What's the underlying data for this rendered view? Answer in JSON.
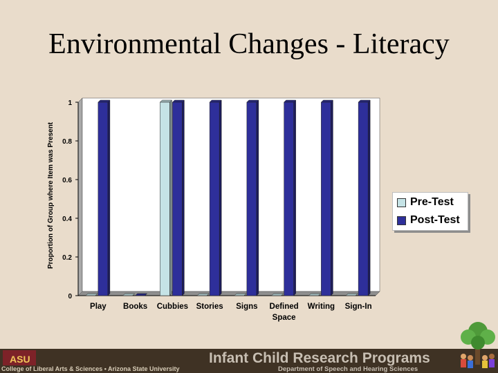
{
  "slide": {
    "title": "Environmental Changes - Literacy"
  },
  "chart_data": {
    "type": "bar",
    "title": "",
    "xlabel": "",
    "ylabel": "Proportion of Group where Item was Present",
    "ylim": [
      0,
      1
    ],
    "yticks": [
      "0",
      "0.2",
      "0.4",
      "0.6",
      "0.8",
      "1"
    ],
    "categories": [
      "Play",
      "Books",
      "Cubbies",
      "Stories",
      "Signs",
      "Defined Space",
      "Writing",
      "Sign-In"
    ],
    "series": [
      {
        "name": "Pre-Test",
        "color": "#c5e3e6",
        "values": [
          0,
          0,
          1,
          0,
          0,
          0,
          0,
          0
        ]
      },
      {
        "name": "Post-Test",
        "color": "#2e2f9a",
        "values": [
          1,
          0,
          1,
          1,
          1,
          1,
          1,
          1
        ]
      }
    ],
    "legend": "right",
    "grid": false,
    "style": "3d"
  },
  "footer": {
    "logo_text": "ASU",
    "college": "College of Liberal Arts & Sciences • Arizona State University",
    "program": "Infant Child Research Programs",
    "department": "Department of Speech and Hearing Sciences"
  },
  "icons": [
    "asu-sun-devil-logo",
    "tree-with-children-logo"
  ]
}
